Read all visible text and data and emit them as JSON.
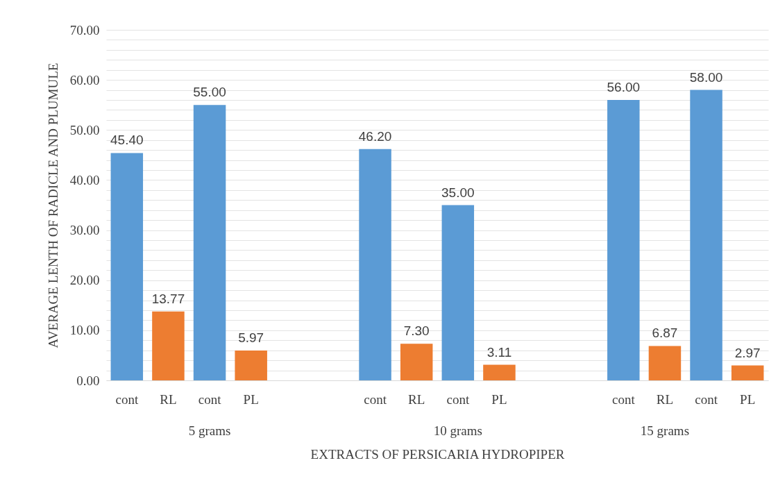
{
  "chart_data": {
    "type": "bar",
    "categories": [
      "cont",
      "RL",
      "cont",
      "PL",
      null,
      null,
      "cont",
      "RL",
      "cont",
      "PL",
      null,
      null,
      "cont",
      "RL",
      "cont",
      "PL"
    ],
    "values": [
      45.4,
      13.77,
      55.0,
      5.97,
      null,
      null,
      46.2,
      7.3,
      35.0,
      3.11,
      null,
      null,
      56.0,
      6.87,
      58.0,
      2.97
    ],
    "colors": [
      "#5b9bd5",
      "#ed7d31",
      "#5b9bd5",
      "#ed7d31",
      null,
      null,
      "#5b9bd5",
      "#ed7d31",
      "#5b9bd5",
      "#ed7d31",
      null,
      null,
      "#5b9bd5",
      "#ed7d31",
      "#5b9bd5",
      "#ed7d31"
    ],
    "value_labels": [
      "45.40",
      "13.77",
      "55.00",
      "5.97",
      null,
      null,
      "46.20",
      "7.30",
      "35.00",
      "3.11",
      null,
      null,
      "56.00",
      "6.87",
      "58.00",
      "2.97"
    ],
    "xlabel": "EXTRACTS OF PERSICARIA HYDROPIPER",
    "ylabel": "AVERAGE LENTH OF RADICLE AND PLUMULE",
    "annotations": [
      "5 grams",
      "10 grams",
      "15 grams"
    ],
    "ylim": [
      0,
      70
    ],
    "yticks": [
      {
        "value": 0,
        "label": "0.00"
      },
      {
        "value": 2,
        "label": null
      },
      {
        "value": 4,
        "label": null
      },
      {
        "value": 6,
        "label": null
      },
      {
        "value": 8,
        "label": null
      },
      {
        "value": 10,
        "label": "10.00"
      },
      {
        "value": 12,
        "label": null
      },
      {
        "value": 14,
        "label": null
      },
      {
        "value": 16,
        "label": null
      },
      {
        "value": 18,
        "label": null
      },
      {
        "value": 20,
        "label": "20.00"
      },
      {
        "value": 22,
        "label": null
      },
      {
        "value": 24,
        "label": null
      },
      {
        "value": 26,
        "label": null
      },
      {
        "value": 28,
        "label": null
      },
      {
        "value": 30,
        "label": "30.00"
      },
      {
        "value": 32,
        "label": null
      },
      {
        "value": 34,
        "label": null
      },
      {
        "value": 36,
        "label": null
      },
      {
        "value": 38,
        "label": null
      },
      {
        "value": 40,
        "label": "40.00"
      },
      {
        "value": 42,
        "label": null
      },
      {
        "value": 44,
        "label": null
      },
      {
        "value": 46,
        "label": null
      },
      {
        "value": 48,
        "label": null
      },
      {
        "value": 50,
        "label": "50.00"
      },
      {
        "value": 52,
        "label": null
      },
      {
        "value": 54,
        "label": null
      },
      {
        "value": 56,
        "label": null
      },
      {
        "value": 58,
        "label": null
      },
      {
        "value": 60,
        "label": "60.00"
      },
      {
        "value": 62,
        "label": null
      },
      {
        "value": 64,
        "label": null
      },
      {
        "value": 66,
        "label": null
      },
      {
        "value": 68,
        "label": null
      },
      {
        "value": 70,
        "label": "70.00"
      }
    ],
    "grid": true
  }
}
